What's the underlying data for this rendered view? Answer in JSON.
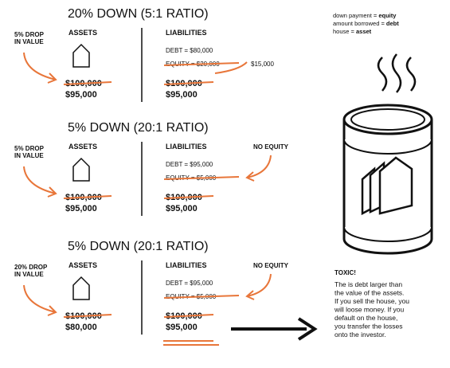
{
  "panels": [
    {
      "title": "20% DOWN (5:1 RATIO)",
      "note": [
        "5% DROP",
        "IN VALUE"
      ],
      "assets_label": "ASSETS",
      "assets_old": "$100,000",
      "assets_new": "$95,000",
      "liabilities_label": "LIABILITIES",
      "debt": "DEBT = $80,000",
      "equity_old": "EQUITY = $20,000",
      "equity_new": "$15,000",
      "liab_old": "$100,000",
      "liab_new": "$95,000"
    },
    {
      "title": "5% DOWN (20:1 RATIO)",
      "note": [
        "5% DROP",
        "IN VALUE"
      ],
      "assets_label": "ASSETS",
      "assets_old": "$100,000",
      "assets_new": "$95,000",
      "liabilities_label": "LIABILITIES",
      "no_equity": "NO EQUITY",
      "debt": "DEBT = $95,000",
      "equity_old": "EQUITY = $5,000",
      "liab_old": "$100,000",
      "liab_new": "$95,000"
    },
    {
      "title": "5% DOWN (20:1 RATIO)",
      "note": [
        "20% DROP",
        "IN VALUE"
      ],
      "assets_label": "ASSETS",
      "assets_old": "$100,000",
      "assets_new": "$80,000",
      "liabilities_label": "LIABILITIES",
      "no_equity": "NO EQUITY",
      "debt": "DEBT = $95,000",
      "equity_old": "EQUITY = $5,000",
      "liab_old": "$100,000",
      "liab_new": "$95,000"
    }
  ],
  "legend": [
    {
      "text": "down payment = ",
      "bold": "equity"
    },
    {
      "text": "amount borrowed = ",
      "bold": "debt"
    },
    {
      "text": "house = ",
      "bold": "asset"
    }
  ],
  "toxic": {
    "title": "TOXIC!",
    "lines": [
      "The is debt larger than",
      "the value of the assets.",
      "If you sell the house, you",
      "will loose money. If you",
      "default on the house,",
      "you transfer the losses",
      "onto the investor."
    ]
  }
}
